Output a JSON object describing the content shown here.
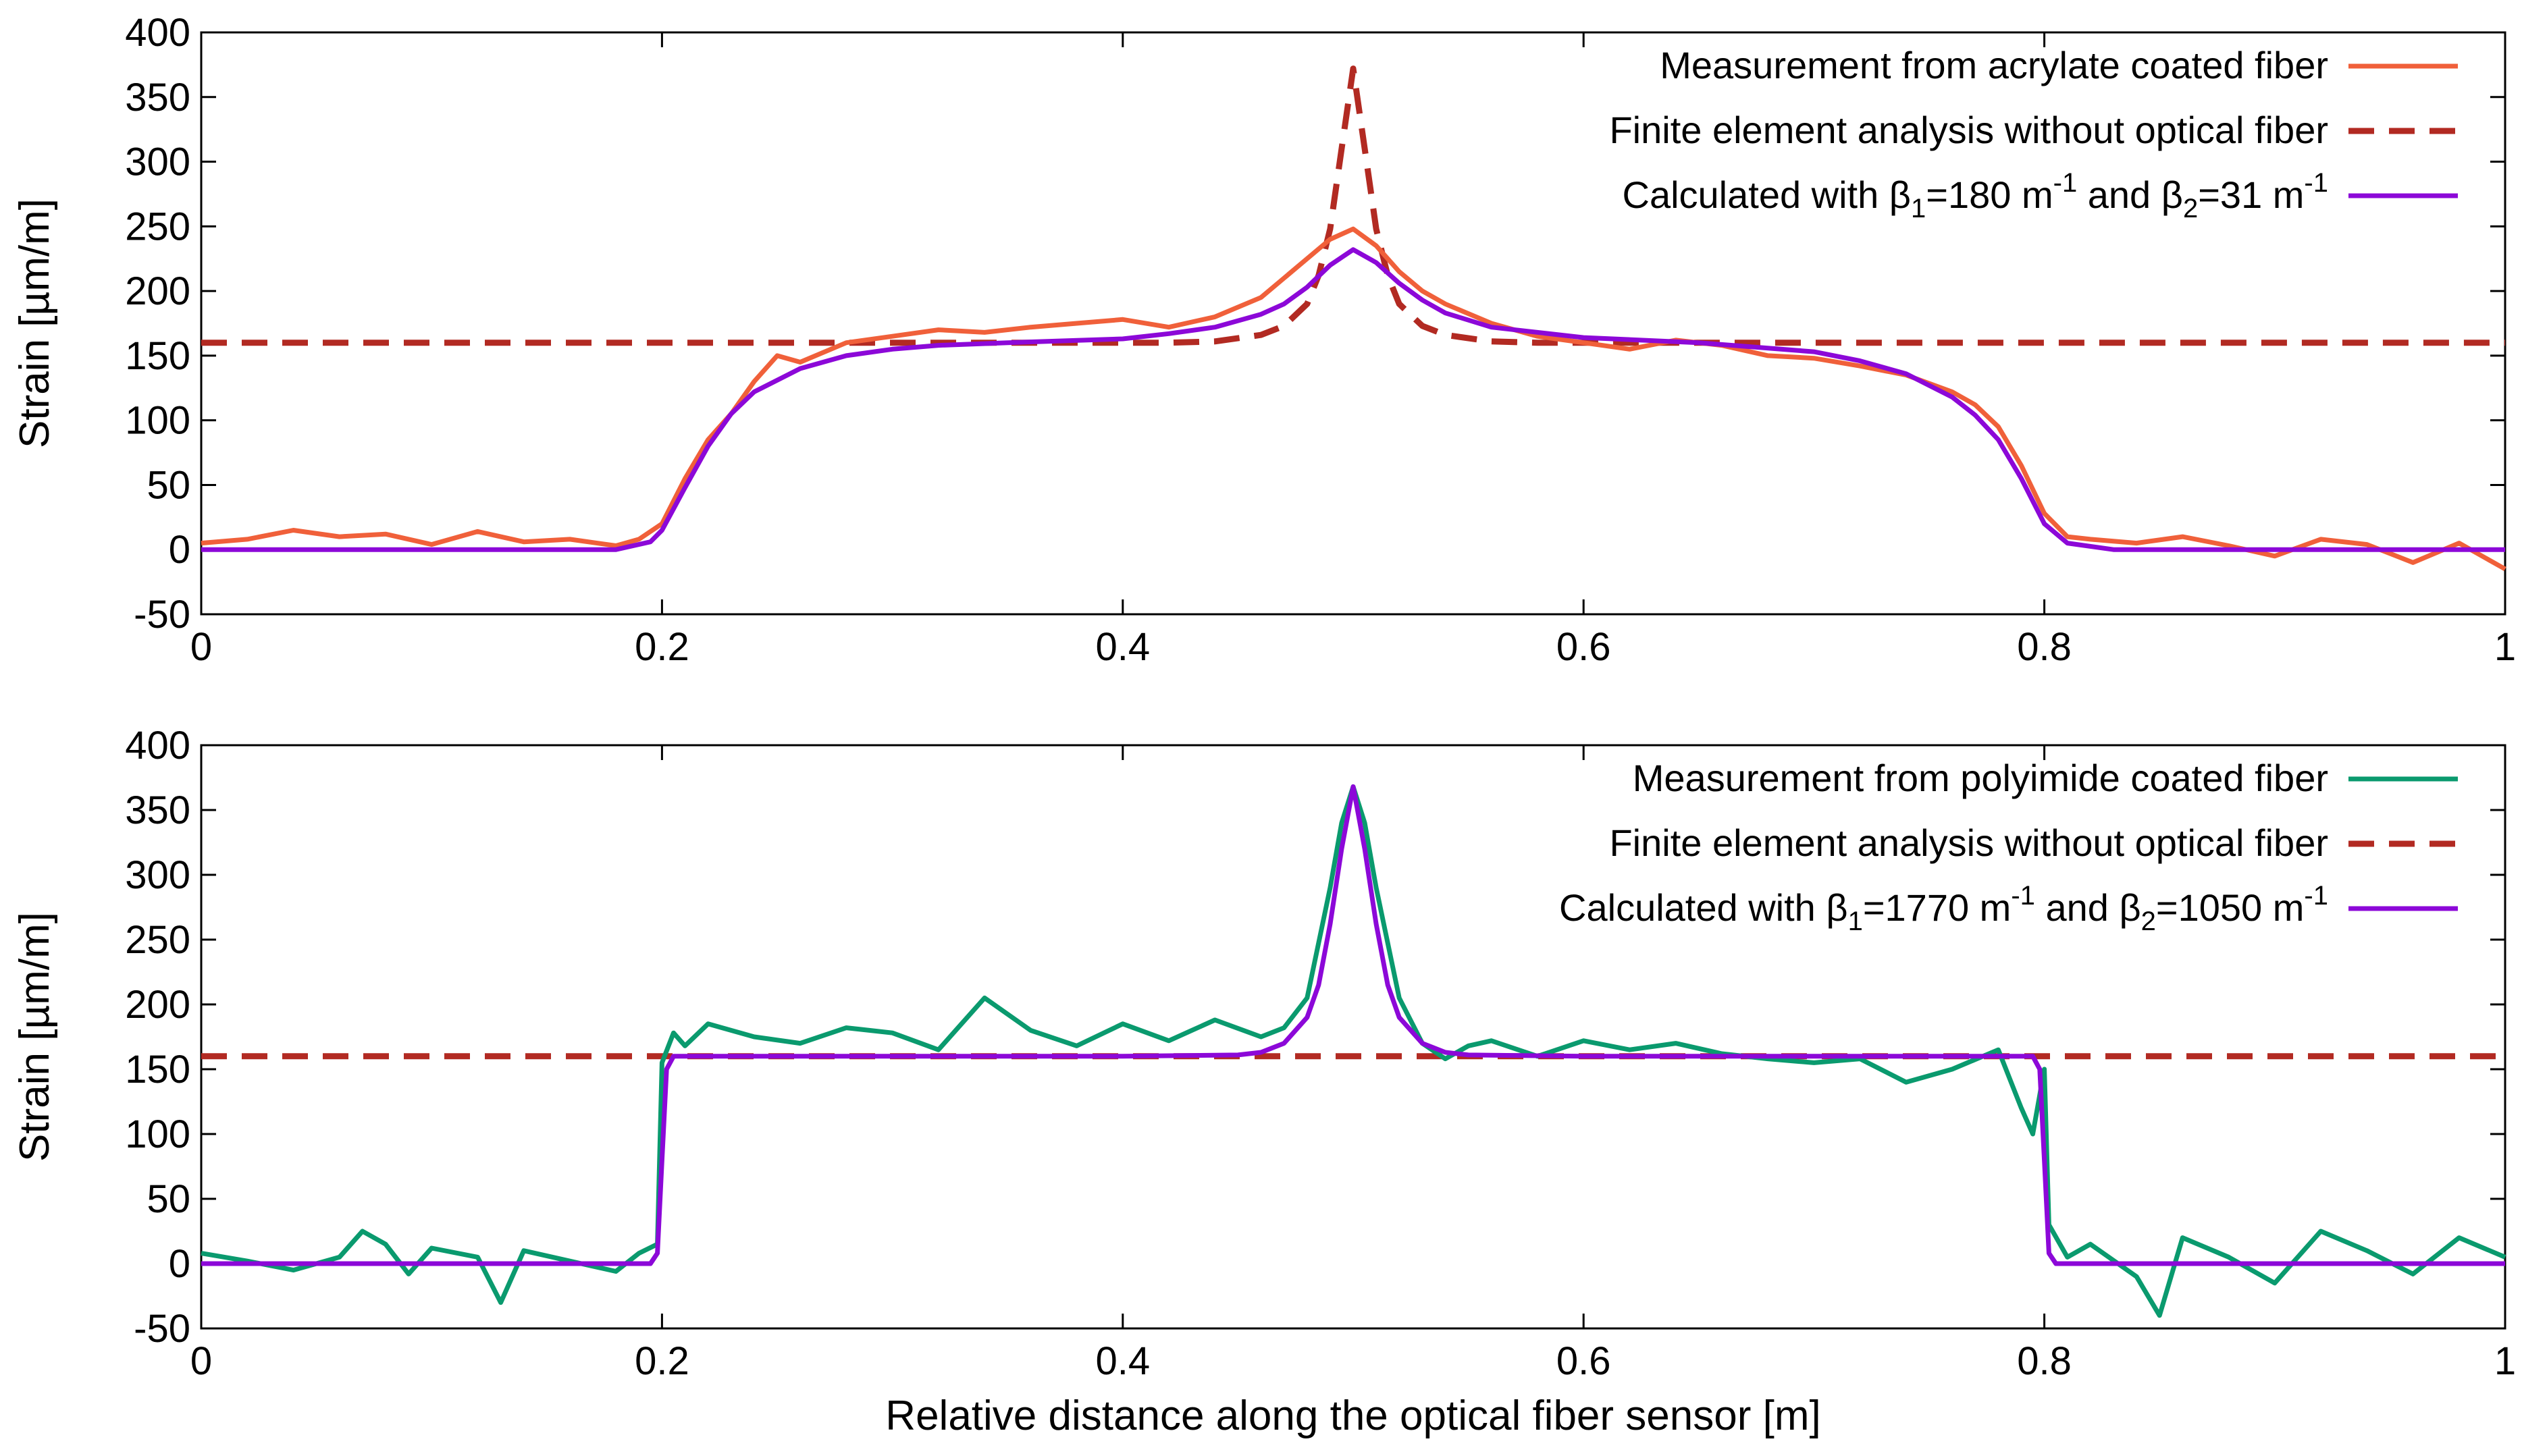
{
  "chart_data": [
    {
      "type": "line",
      "panel": "top",
      "xlabel": "",
      "ylabel": "Strain [µm/m]",
      "xlim": [
        0,
        1
      ],
      "ylim": [
        -50,
        400
      ],
      "xticks": [
        0,
        0.2,
        0.4,
        0.6,
        0.8,
        1
      ],
      "xtick_labels": [
        "0",
        "0.2",
        "0.4",
        "0.6",
        "0.8",
        "1"
      ],
      "yticks": [
        -50,
        0,
        50,
        100,
        150,
        200,
        250,
        300,
        350,
        400
      ],
      "ytick_labels": [
        "-50",
        "0",
        "50",
        "100",
        "150",
        "200",
        "250",
        "300",
        "350",
        "400"
      ],
      "grid": false,
      "legend_position": "top-right",
      "series": [
        {
          "name": "Measurement from acrylate coated fiber",
          "color": "#f0603a",
          "style": "solid",
          "x": [
            0,
            0.02,
            0.04,
            0.06,
            0.08,
            0.1,
            0.12,
            0.14,
            0.16,
            0.18,
            0.19,
            0.2,
            0.21,
            0.22,
            0.23,
            0.24,
            0.25,
            0.26,
            0.28,
            0.3,
            0.32,
            0.34,
            0.36,
            0.38,
            0.4,
            0.42,
            0.44,
            0.46,
            0.47,
            0.48,
            0.49,
            0.5,
            0.51,
            0.52,
            0.53,
            0.54,
            0.56,
            0.58,
            0.6,
            0.62,
            0.64,
            0.66,
            0.68,
            0.7,
            0.72,
            0.74,
            0.76,
            0.77,
            0.78,
            0.79,
            0.8,
            0.81,
            0.82,
            0.84,
            0.86,
            0.88,
            0.9,
            0.92,
            0.94,
            0.96,
            0.98,
            1
          ],
          "values": [
            5,
            8,
            15,
            10,
            12,
            4,
            14,
            6,
            8,
            3,
            8,
            20,
            55,
            85,
            105,
            130,
            150,
            145,
            160,
            165,
            170,
            168,
            172,
            175,
            178,
            172,
            180,
            195,
            210,
            225,
            240,
            248,
            235,
            215,
            200,
            190,
            175,
            165,
            160,
            155,
            162,
            158,
            150,
            148,
            142,
            135,
            122,
            112,
            95,
            65,
            28,
            10,
            8,
            5,
            10,
            3,
            -5,
            8,
            4,
            -10,
            5,
            -15
          ]
        },
        {
          "name": "Finite element analysis without optical fiber",
          "color": "#b22a22",
          "style": "dashed",
          "x": [
            0,
            0.42,
            0.44,
            0.46,
            0.47,
            0.48,
            0.485,
            0.49,
            0.495,
            0.5,
            0.505,
            0.51,
            0.515,
            0.52,
            0.53,
            0.54,
            0.56,
            0.58,
            1
          ],
          "values": [
            160,
            160,
            161,
            166,
            173,
            190,
            212,
            248,
            310,
            372,
            310,
            248,
            212,
            190,
            173,
            166,
            161,
            160,
            160
          ]
        },
        {
          "name": "Calculated with β1=180 m-1 and β2=31 m-1",
          "color": "#8c08d8",
          "style": "solid",
          "x": [
            0,
            0.18,
            0.195,
            0.2,
            0.21,
            0.22,
            0.23,
            0.24,
            0.26,
            0.28,
            0.3,
            0.32,
            0.35,
            0.4,
            0.42,
            0.44,
            0.46,
            0.47,
            0.48,
            0.49,
            0.5,
            0.51,
            0.52,
            0.53,
            0.54,
            0.56,
            0.6,
            0.65,
            0.7,
            0.72,
            0.74,
            0.76,
            0.77,
            0.78,
            0.79,
            0.8,
            0.81,
            0.83,
            1
          ],
          "values": [
            0,
            0,
            6,
            15,
            48,
            80,
            105,
            122,
            140,
            150,
            155,
            158,
            160,
            163,
            167,
            172,
            182,
            190,
            203,
            220,
            232,
            222,
            206,
            193,
            183,
            172,
            164,
            160,
            153,
            146,
            136,
            118,
            104,
            85,
            55,
            20,
            5,
            0,
            0
          ]
        }
      ],
      "legend": [
        {
          "prefix": "Measurement from acrylate coated fiber",
          "b1": "",
          "mid": "",
          "b2": "",
          "tail": "",
          "style": "solid",
          "color": "#f0603a"
        },
        {
          "prefix": "Finite element analysis without optical fiber",
          "b1": "",
          "mid": "",
          "b2": "",
          "tail": "",
          "style": "dashed",
          "color": "#b22a22"
        },
        {
          "prefix": "Calculated with β",
          "sub1": "1",
          "b1": "=180 m",
          "sup1": "-1",
          "mid": " and β",
          "sub2": "2",
          "b2": "=31 m",
          "sup2": "-1",
          "style": "solid",
          "color": "#8c08d8"
        }
      ]
    },
    {
      "type": "line",
      "panel": "bottom",
      "xlabel": "Relative distance along the optical fiber sensor [m]",
      "ylabel": "Strain [µm/m]",
      "xlim": [
        0,
        1
      ],
      "ylim": [
        -50,
        400
      ],
      "xticks": [
        0,
        0.2,
        0.4,
        0.6,
        0.8,
        1
      ],
      "xtick_labels": [
        "0",
        "0.2",
        "0.4",
        "0.6",
        "0.8",
        "1"
      ],
      "yticks": [
        -50,
        0,
        50,
        100,
        150,
        200,
        250,
        300,
        350,
        400
      ],
      "ytick_labels": [
        "-50",
        "0",
        "50",
        "100",
        "150",
        "200",
        "250",
        "300",
        "350",
        "400"
      ],
      "grid": false,
      "legend_position": "top-right",
      "series": [
        {
          "name": "Measurement from polyimide coated fiber",
          "color": "#0a9a6e",
          "style": "solid",
          "x": [
            0,
            0.02,
            0.04,
            0.06,
            0.07,
            0.08,
            0.09,
            0.1,
            0.12,
            0.13,
            0.14,
            0.16,
            0.18,
            0.19,
            0.198,
            0.2,
            0.205,
            0.21,
            0.22,
            0.24,
            0.26,
            0.28,
            0.3,
            0.32,
            0.34,
            0.36,
            0.38,
            0.4,
            0.42,
            0.44,
            0.46,
            0.47,
            0.48,
            0.49,
            0.495,
            0.5,
            0.505,
            0.51,
            0.52,
            0.53,
            0.54,
            0.55,
            0.56,
            0.58,
            0.6,
            0.62,
            0.64,
            0.66,
            0.68,
            0.7,
            0.72,
            0.74,
            0.76,
            0.78,
            0.79,
            0.795,
            0.8,
            0.802,
            0.81,
            0.82,
            0.84,
            0.85,
            0.86,
            0.88,
            0.9,
            0.92,
            0.94,
            0.96,
            0.98,
            1
          ],
          "values": [
            8,
            2,
            -5,
            5,
            25,
            15,
            -8,
            12,
            5,
            -30,
            10,
            2,
            -6,
            8,
            15,
            155,
            178,
            168,
            185,
            175,
            170,
            182,
            178,
            165,
            205,
            180,
            168,
            185,
            172,
            188,
            175,
            182,
            205,
            290,
            340,
            368,
            340,
            290,
            205,
            170,
            158,
            168,
            172,
            160,
            172,
            165,
            170,
            162,
            158,
            155,
            158,
            140,
            150,
            165,
            120,
            100,
            150,
            30,
            5,
            15,
            -10,
            -40,
            20,
            5,
            -15,
            25,
            10,
            -8,
            20,
            5
          ]
        },
        {
          "name": "Finite element analysis without optical fiber",
          "color": "#b22a22",
          "style": "dashed",
          "x": [
            0,
            1
          ],
          "values": [
            160,
            160
          ]
        },
        {
          "name": "Calculated with β1=1770 m-1 and β2=1050 m-1",
          "color": "#8c08d8",
          "style": "solid",
          "x": [
            0,
            0.195,
            0.198,
            0.2,
            0.202,
            0.205,
            0.3,
            0.4,
            0.45,
            0.46,
            0.47,
            0.48,
            0.485,
            0.49,
            0.495,
            0.5,
            0.505,
            0.51,
            0.515,
            0.52,
            0.53,
            0.54,
            0.55,
            0.6,
            0.7,
            0.795,
            0.798,
            0.8,
            0.802,
            0.805,
            1
          ],
          "values": [
            0,
            0,
            8,
            80,
            150,
            160,
            160,
            160,
            161,
            163,
            170,
            190,
            215,
            262,
            320,
            368,
            320,
            262,
            215,
            190,
            170,
            163,
            161,
            160,
            160,
            160,
            150,
            80,
            8,
            0,
            0
          ]
        }
      ],
      "legend": [
        {
          "prefix": "Measurement from polyimide coated fiber",
          "b1": "",
          "mid": "",
          "b2": "",
          "tail": "",
          "style": "solid",
          "color": "#0a9a6e"
        },
        {
          "prefix": "Finite element analysis without optical fiber",
          "b1": "",
          "mid": "",
          "b2": "",
          "tail": "",
          "style": "dashed",
          "color": "#b22a22"
        },
        {
          "prefix": "Calculated with β",
          "sub1": "1",
          "b1": "=1770 m",
          "sup1": "-1",
          "mid": " and β",
          "sub2": "2",
          "b2": "=1050  m",
          "sup2": "-1",
          "style": "solid",
          "color": "#8c08d8"
        }
      ]
    }
  ]
}
